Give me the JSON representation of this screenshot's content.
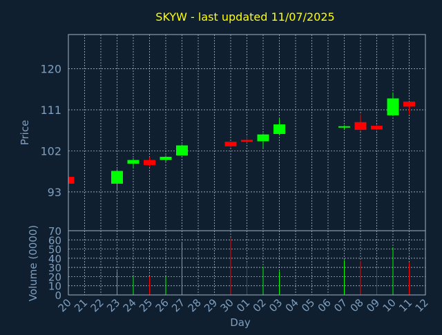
{
  "chart_data": {
    "type": "candlestick",
    "title": "SKYW - last updated 11/07/2025",
    "xlabel": "Day",
    "colors": {
      "background": "#0f1f2f",
      "title": "#ffff00",
      "axis_text": "#7f9fbf",
      "frame": "#9fb3c8",
      "grid": "#c8d3de",
      "up": "#00ff00",
      "down": "#ff0000"
    },
    "categories": [
      "20",
      "21",
      "22",
      "23",
      "24",
      "25",
      "26",
      "27",
      "28",
      "29",
      "30",
      "01",
      "02",
      "03",
      "04",
      "05",
      "06",
      "07",
      "08",
      "09",
      "10",
      "11",
      "12"
    ],
    "price": {
      "ylabel": "Price",
      "yticks": [
        93,
        102,
        111,
        120
      ],
      "ylim": [
        84.5,
        127.5
      ],
      "grid": true,
      "candles": [
        {
          "day": "20",
          "open": 96.3,
          "high": 96.3,
          "low": 94.5,
          "close": 94.8
        },
        {
          "day": "23",
          "open": 94.8,
          "high": 98.0,
          "low": 93.2,
          "close": 97.6
        },
        {
          "day": "24",
          "open": 99.2,
          "high": 100.4,
          "low": 98.3,
          "close": 100.0
        },
        {
          "day": "25",
          "open": 100.0,
          "high": 100.6,
          "low": 98.6,
          "close": 98.9
        },
        {
          "day": "26",
          "open": 100.0,
          "high": 101.0,
          "low": 99.6,
          "close": 100.7
        },
        {
          "day": "27",
          "open": 101.0,
          "high": 103.4,
          "low": 101.0,
          "close": 103.2
        },
        {
          "day": "30",
          "open": 104.0,
          "high": 104.0,
          "low": 102.8,
          "close": 103.0
        },
        {
          "day": "01",
          "open": 104.4,
          "high": 105.2,
          "low": 103.7,
          "close": 104.0
        },
        {
          "day": "02",
          "open": 104.1,
          "high": 105.8,
          "low": 102.6,
          "close": 105.6
        },
        {
          "day": "03",
          "open": 105.7,
          "high": 109.0,
          "low": 105.5,
          "close": 107.8
        },
        {
          "day": "07",
          "open": 107.1,
          "high": 107.6,
          "low": 106.8,
          "close": 107.4
        },
        {
          "day": "08",
          "open": 108.3,
          "high": 110.0,
          "low": 106.3,
          "close": 106.6
        },
        {
          "day": "09",
          "open": 107.5,
          "high": 107.8,
          "low": 106.4,
          "close": 106.7
        },
        {
          "day": "10",
          "open": 109.8,
          "high": 114.8,
          "low": 109.6,
          "close": 113.5
        },
        {
          "day": "11",
          "open": 112.8,
          "high": 112.8,
          "low": 110.1,
          "close": 111.7
        }
      ]
    },
    "volume": {
      "ylabel": "Volume (0000)",
      "yticks": [
        0,
        10,
        20,
        30,
        40,
        50,
        60,
        70
      ],
      "ylim": [
        0,
        70
      ],
      "grid": true,
      "bars": [
        {
          "day": "23",
          "value": 26,
          "direction": "up"
        },
        {
          "day": "24",
          "value": 20,
          "direction": "up"
        },
        {
          "day": "25",
          "value": 20,
          "direction": "down"
        },
        {
          "day": "26",
          "value": 20,
          "direction": "up"
        },
        {
          "day": "27",
          "value": 58,
          "direction": "up"
        },
        {
          "day": "30",
          "value": 62,
          "direction": "down"
        },
        {
          "day": "01",
          "value": 35,
          "direction": "down"
        },
        {
          "day": "02",
          "value": 31,
          "direction": "up"
        },
        {
          "day": "03",
          "value": 26,
          "direction": "up"
        },
        {
          "day": "07",
          "value": 38,
          "direction": "up"
        },
        {
          "day": "08",
          "value": 37,
          "direction": "down"
        },
        {
          "day": "09",
          "value": 30,
          "direction": "down"
        },
        {
          "day": "10",
          "value": 52,
          "direction": "up"
        },
        {
          "day": "11",
          "value": 35,
          "direction": "down"
        }
      ]
    }
  }
}
